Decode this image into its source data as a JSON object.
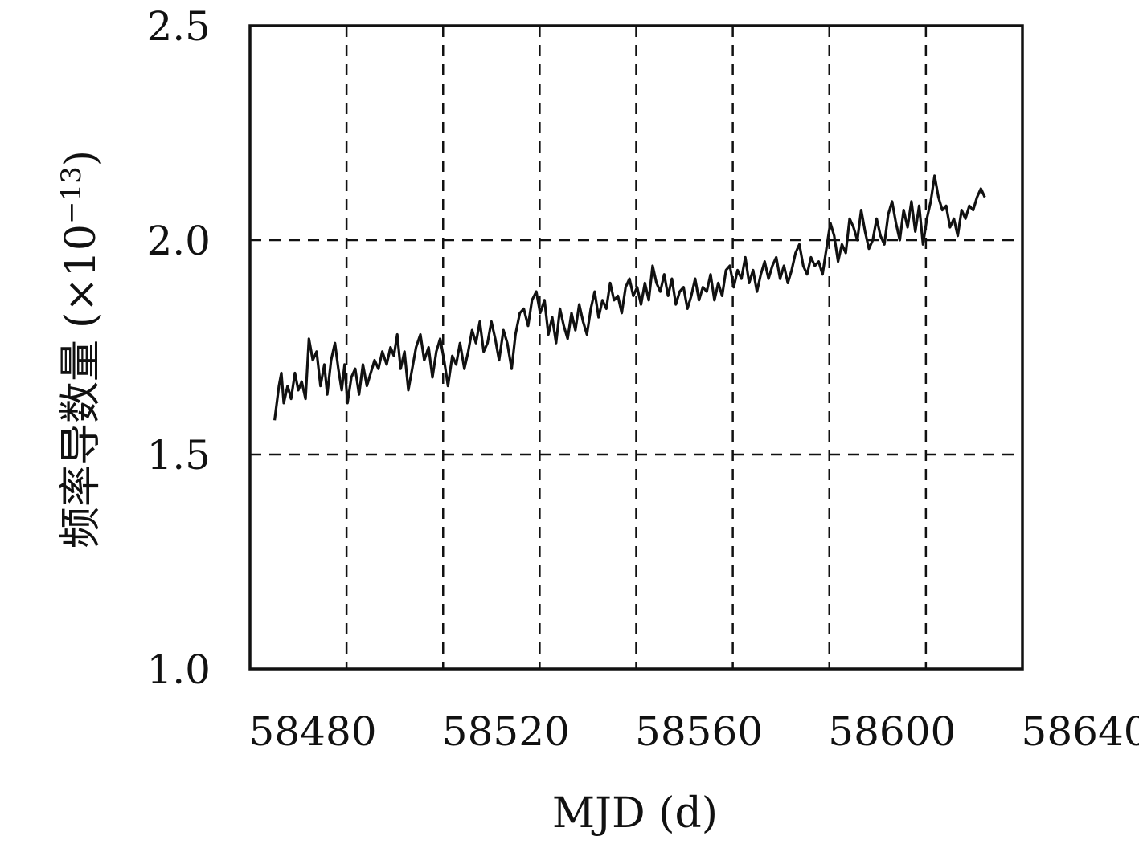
{
  "chart_data": {
    "type": "line",
    "title": "",
    "xlabel": "MJD (d)",
    "ylabel_text": "频率导数量",
    "ylabel_unit_prefix": "(×10",
    "ylabel_exponent": "−13",
    "ylabel_unit_suffix": ")",
    "xlim": [
      58467,
      58627
    ],
    "ylim": [
      1.0,
      2.5
    ],
    "xticks": [
      58480,
      58520,
      58560,
      58600,
      58640
    ],
    "xtick_labels": [
      "58480",
      "58520",
      "58560",
      "58600",
      "58640"
    ],
    "yticks": [
      1.0,
      1.5,
      2.0,
      2.5
    ],
    "ytick_labels": [
      "1.0",
      "1.5",
      "2.0",
      "2.5"
    ],
    "x_gridlines": [
      58487,
      58507,
      58527,
      58547,
      58567,
      58587,
      58607
    ],
    "y_gridlines": [
      1.5,
      2.0
    ],
    "grid": true,
    "line_color": "#111111",
    "series": [
      {
        "x": [
          58472.1,
          58473.0,
          58473.5,
          58474.0,
          58474.8,
          58475.5,
          58476.3,
          58477.0,
          58477.7,
          58478.5,
          58479.2,
          58480.0,
          58480.8,
          58481.6,
          58482.4,
          58483.0,
          58483.8,
          58484.6,
          58485.3,
          58486.0,
          58486.6,
          58487.2,
          58488.0,
          58488.8,
          58489.6,
          58490.4,
          58491.2,
          58492.0,
          58492.8,
          58493.6,
          58494.4,
          58495.3,
          58496.1,
          58496.8,
          58497.5,
          58498.2,
          58499.0,
          58499.8,
          58500.6,
          58501.4,
          58502.3,
          58503.1,
          58504.0,
          58504.8,
          58505.6,
          58506.4,
          58507.2,
          58508.0,
          58508.9,
          58509.7,
          58510.5,
          58511.4,
          58512.2,
          58513.0,
          58513.8,
          58514.6,
          58515.4,
          58516.2,
          58517.0,
          58517.8,
          58518.6,
          58519.5,
          58520.3,
          58521.2,
          58522.0,
          58522.9,
          58523.7,
          58524.6,
          58525.4,
          58526.3,
          58527.1,
          58528.0,
          58528.8,
          58529.6,
          58530.4,
          58531.2,
          58532.0,
          58532.8,
          58533.6,
          58534.4,
          58535.2,
          58536.0,
          58536.8,
          58537.6,
          58538.4,
          58539.2,
          58540.0,
          58540.8,
          58541.6,
          58542.4,
          58543.2,
          58544.0,
          58544.8,
          58545.6,
          58546.4,
          58547.2,
          58548.0,
          58548.8,
          58549.6,
          58550.4,
          58551.2,
          58552.0,
          58552.8,
          58553.6,
          58554.4,
          58555.2,
          58556.0,
          58556.8,
          58557.6,
          58558.4,
          58559.2,
          58560.0,
          58560.8,
          58561.6,
          58562.4,
          58563.2,
          58564.0,
          58564.8,
          58565.6,
          58566.4,
          58567.2,
          58568.0,
          58568.8,
          58569.6,
          58570.4,
          58571.2,
          58572.0,
          58572.8,
          58573.6,
          58574.4,
          58575.2,
          58576.0,
          58576.8,
          58577.6,
          58578.4,
          58579.2,
          58580.0,
          58580.8,
          58581.6,
          58582.4,
          58583.2,
          58584.0,
          58584.8,
          58585.6,
          58586.4,
          58587.2,
          58588.0,
          58588.8,
          58589.6,
          58590.4,
          58591.2,
          58592.0,
          58592.8,
          58593.6,
          58594.4,
          58595.2,
          58596.0,
          58596.8,
          58597.6,
          58598.4,
          58599.2,
          58600.0,
          58600.8,
          58601.6,
          58602.4,
          58603.2,
          58604.0,
          58604.8,
          58605.6,
          58606.4,
          58607.2,
          58608.0,
          58608.8,
          58609.6,
          58610.4,
          58611.2,
          58612.0,
          58612.8,
          58613.6,
          58614.4,
          58615.2,
          58616.0,
          58616.8,
          58617.6,
          58618.4,
          58619.2
        ],
        "values": [
          1.58,
          1.66,
          1.69,
          1.62,
          1.66,
          1.63,
          1.69,
          1.65,
          1.67,
          1.63,
          1.77,
          1.72,
          1.74,
          1.66,
          1.71,
          1.64,
          1.72,
          1.76,
          1.7,
          1.65,
          1.71,
          1.62,
          1.68,
          1.7,
          1.64,
          1.71,
          1.66,
          1.69,
          1.72,
          1.7,
          1.74,
          1.71,
          1.75,
          1.73,
          1.78,
          1.7,
          1.74,
          1.65,
          1.7,
          1.75,
          1.78,
          1.72,
          1.75,
          1.68,
          1.74,
          1.77,
          1.72,
          1.66,
          1.73,
          1.71,
          1.76,
          1.7,
          1.74,
          1.79,
          1.76,
          1.81,
          1.74,
          1.76,
          1.81,
          1.77,
          1.72,
          1.79,
          1.76,
          1.7,
          1.78,
          1.83,
          1.84,
          1.8,
          1.86,
          1.88,
          1.83,
          1.86,
          1.78,
          1.82,
          1.76,
          1.84,
          1.8,
          1.77,
          1.83,
          1.79,
          1.85,
          1.81,
          1.78,
          1.84,
          1.88,
          1.82,
          1.86,
          1.84,
          1.9,
          1.86,
          1.87,
          1.83,
          1.89,
          1.91,
          1.87,
          1.89,
          1.85,
          1.9,
          1.86,
          1.94,
          1.9,
          1.88,
          1.92,
          1.87,
          1.91,
          1.85,
          1.88,
          1.89,
          1.84,
          1.87,
          1.91,
          1.86,
          1.89,
          1.88,
          1.92,
          1.86,
          1.9,
          1.87,
          1.93,
          1.94,
          1.89,
          1.93,
          1.91,
          1.96,
          1.9,
          1.93,
          1.88,
          1.92,
          1.95,
          1.91,
          1.94,
          1.96,
          1.91,
          1.94,
          1.9,
          1.93,
          1.97,
          1.99,
          1.94,
          1.92,
          1.96,
          1.94,
          1.95,
          1.92,
          1.98,
          2.04,
          2.01,
          1.95,
          1.99,
          1.97,
          2.05,
          2.03,
          2.0,
          2.07,
          2.02,
          1.98,
          2.0,
          2.05,
          2.01,
          1.99,
          2.06,
          2.09,
          2.04,
          2.0,
          2.07,
          2.03,
          2.09,
          2.02,
          2.08,
          1.99,
          2.05,
          2.09,
          2.15,
          2.1,
          2.07,
          2.08,
          2.03,
          2.05,
          2.01,
          2.07,
          2.05,
          2.08,
          2.07,
          2.1,
          2.12,
          2.1
        ]
      }
    ]
  }
}
